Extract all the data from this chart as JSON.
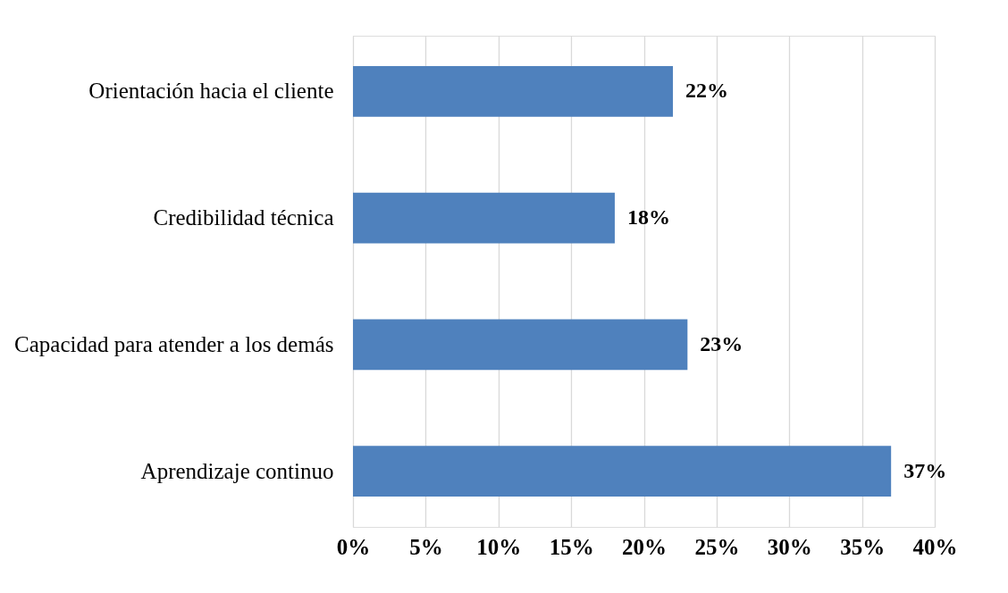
{
  "chart_data": {
    "type": "bar",
    "orientation": "horizontal",
    "categories": [
      "Orientación hacia el cliente",
      "Credibilidad técnica",
      "Capacidad para atender a los demás",
      "Aprendizaje continuo"
    ],
    "values": [
      22,
      18,
      23,
      37
    ],
    "color": "#4f81bd",
    "value_labels": [
      "22%",
      "18%",
      "23%",
      "37%"
    ],
    "xlim": [
      0,
      40
    ],
    "xticks": [
      {
        "value": 0,
        "label": "0%"
      },
      {
        "value": 5,
        "label": "5%"
      },
      {
        "value": 10,
        "label": "10%"
      },
      {
        "value": 15,
        "label": "15%"
      },
      {
        "value": 20,
        "label": "20%"
      },
      {
        "value": 25,
        "label": "25%"
      },
      {
        "value": 30,
        "label": "30%"
      },
      {
        "value": 35,
        "label": "35%"
      },
      {
        "value": 40,
        "label": "40%"
      }
    ],
    "grid": "x"
  }
}
